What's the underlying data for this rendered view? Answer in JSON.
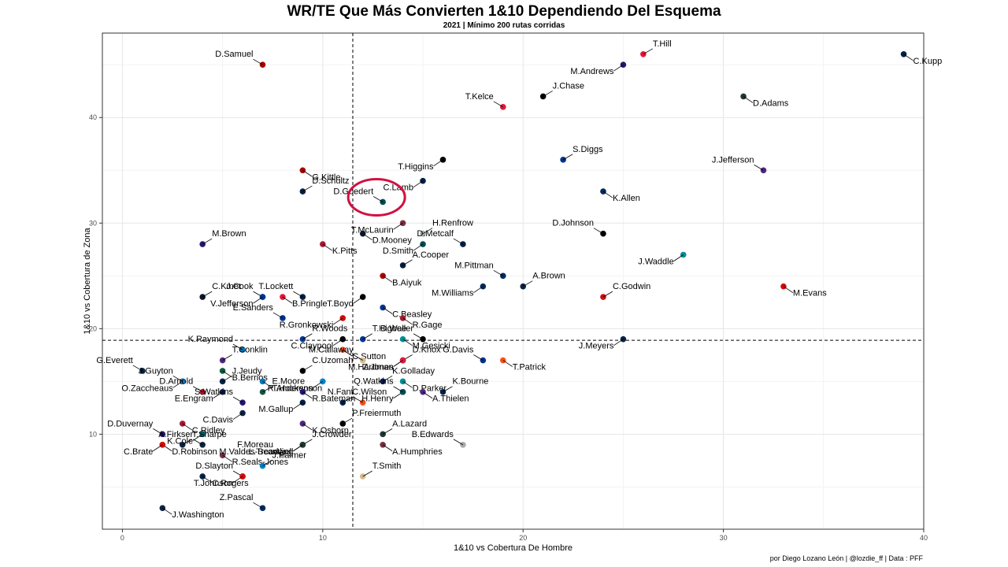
{
  "chart_data": {
    "type": "scatter",
    "title": "WR/TE Que Más Convierten 1&10 Dependiendo Del Esquema",
    "subtitle": "2021 | Mínimo 200 rutas corridas",
    "xlabel": "1&10 vs Cobertura De Hombre",
    "ylabel": "1&10 vs Cobertura de Zona",
    "caption": "por Diego Lozano León | @lozdie_ff | Data : PFF",
    "xlim": [
      -1,
      40
    ],
    "ylim": [
      1,
      48
    ],
    "xticks": [
      0,
      10,
      20,
      30,
      40
    ],
    "yticks": [
      10,
      20,
      30,
      40
    ],
    "grid": true,
    "vline": 11.5,
    "hline": 18.9,
    "highlight": "D.Goedert",
    "points": [
      {
        "name": "T.Hill",
        "x": 26,
        "y": 46,
        "color": "#e31837"
      },
      {
        "name": "C.Kupp",
        "x": 39,
        "y": 46,
        "color": "#002244"
      },
      {
        "name": "D.Samuel",
        "x": 7,
        "y": 45,
        "color": "#aa0000"
      },
      {
        "name": "M.Andrews",
        "x": 25,
        "y": 45,
        "color": "#241773"
      },
      {
        "name": "J.Chase",
        "x": 21,
        "y": 42,
        "color": "#000000"
      },
      {
        "name": "D.Adams",
        "x": 31,
        "y": 42,
        "color": "#203731"
      },
      {
        "name": "T.Kelce",
        "x": 19,
        "y": 41,
        "color": "#e31837"
      },
      {
        "name": "T.Higgins",
        "x": 16,
        "y": 36,
        "color": "#000000"
      },
      {
        "name": "S.Diggs",
        "x": 22,
        "y": 36,
        "color": "#00338d"
      },
      {
        "name": "G.Kittle",
        "x": 9,
        "y": 35,
        "color": "#aa0000"
      },
      {
        "name": "J.Jefferson",
        "x": 32,
        "y": 35,
        "color": "#4f2683"
      },
      {
        "name": "C.Lamb",
        "x": 15,
        "y": 34,
        "color": "#041e42"
      },
      {
        "name": "D.Schultz",
        "x": 9,
        "y": 33,
        "color": "#041e42"
      },
      {
        "name": "K.Allen",
        "x": 24,
        "y": 33,
        "color": "#002a5e"
      },
      {
        "name": "D.Goedert",
        "x": 13,
        "y": 32,
        "color": "#004c54"
      },
      {
        "name": "T.McLaurin",
        "x": 14,
        "y": 30,
        "color": "#773141"
      },
      {
        "name": "H.Renfrow",
        "x": 15,
        "y": 29,
        "color": "#a5acaf"
      },
      {
        "name": "D.Mooney",
        "x": 12,
        "y": 29,
        "color": "#0b162a"
      },
      {
        "name": "D.Johnson",
        "x": 24,
        "y": 29,
        "color": "#000000"
      },
      {
        "name": "D.Smith",
        "x": 15,
        "y": 28,
        "color": "#004c54"
      },
      {
        "name": "M.Brown",
        "x": 4,
        "y": 28,
        "color": "#241773"
      },
      {
        "name": "K.Pitts",
        "x": 10,
        "y": 28,
        "color": "#a71930"
      },
      {
        "name": "D.Metcalf",
        "x": 17,
        "y": 28,
        "color": "#002244"
      },
      {
        "name": "J.Waddle",
        "x": 28,
        "y": 27,
        "color": "#008e97"
      },
      {
        "name": "A.Cooper",
        "x": 14,
        "y": 26,
        "color": "#041e42"
      },
      {
        "name": "B.Aiyuk",
        "x": 13,
        "y": 25,
        "color": "#aa0000"
      },
      {
        "name": "M.Pittman",
        "x": 19,
        "y": 25,
        "color": "#002c5f"
      },
      {
        "name": "M.Williams",
        "x": 18,
        "y": 24,
        "color": "#002a5e"
      },
      {
        "name": "A.Brown",
        "x": 20,
        "y": 24,
        "color": "#0c2340"
      },
      {
        "name": "M.Evans",
        "x": 33,
        "y": 24,
        "color": "#d50a0a"
      },
      {
        "name": "J.Cook",
        "x": 7,
        "y": 23,
        "color": "#002244"
      },
      {
        "name": "V.Jefferson",
        "x": 7,
        "y": 23,
        "color": "#003594"
      },
      {
        "name": "C.Kmet",
        "x": 4,
        "y": 23,
        "color": "#0b162a"
      },
      {
        "name": "B.Pringle",
        "x": 8,
        "y": 23,
        "color": "#e31837"
      },
      {
        "name": "T.Lockett",
        "x": 9,
        "y": 23,
        "color": "#002244"
      },
      {
        "name": "T.Boyd",
        "x": 12,
        "y": 23,
        "color": "#000000"
      },
      {
        "name": "C.Godwin",
        "x": 24,
        "y": 23,
        "color": "#d50a0a"
      },
      {
        "name": "C.Beasley",
        "x": 13,
        "y": 22,
        "color": "#003594"
      },
      {
        "name": "E.Sanders",
        "x": 8,
        "y": 21,
        "color": "#00338d"
      },
      {
        "name": "R.Gronkowski",
        "x": 11,
        "y": 21,
        "color": "#d50a0a"
      },
      {
        "name": "T.Higbee",
        "x": 12,
        "y": 19,
        "color": "#003594"
      },
      {
        "name": "R.Gage",
        "x": 14,
        "y": 21,
        "color": "#a71930"
      },
      {
        "name": "K.Raymond",
        "x": 6,
        "y": 18,
        "color": "#0076b6"
      },
      {
        "name": "C.Claypool",
        "x": 11,
        "y": 19,
        "color": "#000000"
      },
      {
        "name": "R.Woods",
        "x": 9,
        "y": 19,
        "color": "#003594"
      },
      {
        "name": "M.Gesicki",
        "x": 14,
        "y": 19,
        "color": "#008e97"
      },
      {
        "name": "D.Waller",
        "x": 15,
        "y": 19,
        "color": "#000000"
      },
      {
        "name": "J.Meyers",
        "x": 25,
        "y": 19,
        "color": "#002244"
      },
      {
        "name": "T.Conklin",
        "x": 5,
        "y": 17,
        "color": "#4f2683"
      },
      {
        "name": "C.Sutton",
        "x": 11,
        "y": 18,
        "color": "#fb4f14"
      },
      {
        "name": "M.Callaway",
        "x": 12,
        "y": 17,
        "color": "#d3bc8d"
      },
      {
        "name": "Z.Jones",
        "x": 14,
        "y": 17,
        "color": "#241773"
      },
      {
        "name": "D.Knox",
        "x": 14,
        "y": 17,
        "color": "#00338d"
      },
      {
        "name": "T.Patrick",
        "x": 19,
        "y": 17,
        "color": "#fb4f14"
      },
      {
        "name": "G.Davis",
        "x": 18,
        "y": 17,
        "color": "#00338d"
      },
      {
        "name": "M.Hardman",
        "x": 14,
        "y": 17,
        "color": "#e31837"
      },
      {
        "name": "C.Uzomah",
        "x": 9,
        "y": 16,
        "color": "#000000"
      },
      {
        "name": "B.Berrios",
        "x": 5,
        "y": 16,
        "color": "#125740"
      },
      {
        "name": "G.Everett",
        "x": 1,
        "y": 16,
        "color": "#002244"
      },
      {
        "name": "O.Zaccheaus",
        "x": 3,
        "y": 15,
        "color": "#a71930"
      },
      {
        "name": "J.Jeudy",
        "x": 5,
        "y": 15,
        "color": "#002244"
      },
      {
        "name": "T.Hockenson",
        "x": 7,
        "y": 15,
        "color": "#0076b6"
      },
      {
        "name": "J.Guyton",
        "x": 3,
        "y": 15,
        "color": "#0080c6"
      },
      {
        "name": "R.Anderson",
        "x": 10,
        "y": 15,
        "color": "#0085ca"
      },
      {
        "name": "K.Golladay",
        "x": 13,
        "y": 15,
        "color": "#0b2265"
      },
      {
        "name": "D.Parker",
        "x": 14,
        "y": 15,
        "color": "#008e97"
      },
      {
        "name": "D.Arnold",
        "x": 4,
        "y": 14,
        "color": "#a71930"
      },
      {
        "name": "E.Engram",
        "x": 5,
        "y": 14,
        "color": "#0b2265"
      },
      {
        "name": "E.Moore",
        "x": 7,
        "y": 14,
        "color": "#125740"
      },
      {
        "name": "R.Bateman",
        "x": 9,
        "y": 14,
        "color": "#241773"
      },
      {
        "name": "N.Fant",
        "x": 12,
        "y": 13,
        "color": "#fb4f14"
      },
      {
        "name": "H.Henry",
        "x": 14,
        "y": 14,
        "color": "#002244"
      },
      {
        "name": "K.Bourne",
        "x": 16,
        "y": 14,
        "color": "#002244"
      },
      {
        "name": "A.Thielen",
        "x": 15,
        "y": 14,
        "color": "#4f2683"
      },
      {
        "name": "Q.Watkins",
        "x": 14,
        "y": 14,
        "color": "#004c54"
      },
      {
        "name": "M.Gallup",
        "x": 9,
        "y": 13,
        "color": "#041e42"
      },
      {
        "name": "C.Wilson",
        "x": 11,
        "y": 13,
        "color": "#041e42"
      },
      {
        "name": "C.Ridley",
        "x": 3,
        "y": 11,
        "color": "#a71930"
      },
      {
        "name": "S.Watkins",
        "x": 6,
        "y": 13,
        "color": "#241773"
      },
      {
        "name": "C.Davis",
        "x": 6,
        "y": 12,
        "color": "#0c2340"
      },
      {
        "name": "P.Freiermuth",
        "x": 11,
        "y": 11,
        "color": "#000000"
      },
      {
        "name": "K.Osborn",
        "x": 9,
        "y": 11,
        "color": "#4f2683"
      },
      {
        "name": "D.Duvernay",
        "x": 2,
        "y": 10,
        "color": "#241773"
      },
      {
        "name": "K.Cole",
        "x": 4,
        "y": 10,
        "color": "#006778"
      },
      {
        "name": "A.Lazard",
        "x": 13,
        "y": 10,
        "color": "#203731"
      },
      {
        "name": "D.Robinson",
        "x": 2,
        "y": 9,
        "color": "#e31837"
      },
      {
        "name": "A.Firkser",
        "x": 4,
        "y": 9,
        "color": "#0c2340"
      },
      {
        "name": "L.Treadwell",
        "x": 9,
        "y": 9,
        "color": "#006778"
      },
      {
        "name": "J.Crowder",
        "x": 9,
        "y": 9,
        "color": "#125740"
      },
      {
        "name": "A.Humphries",
        "x": 13,
        "y": 9,
        "color": "#773141"
      },
      {
        "name": "B.Edwards",
        "x": 17,
        "y": 9,
        "color": "#a5acaf"
      },
      {
        "name": "C.Brate",
        "x": 2,
        "y": 9,
        "color": "#d50a0a"
      },
      {
        "name": "T.Sharpe",
        "x": 3,
        "y": 9,
        "color": "#0c2340"
      },
      {
        "name": "R.Seals-Jones",
        "x": 5,
        "y": 8,
        "color": "#773141"
      },
      {
        "name": "F.Moreau",
        "x": 8,
        "y": 8,
        "color": "#a5acaf"
      },
      {
        "name": "M.Valdes-Scantling",
        "x": 9,
        "y": 9,
        "color": "#203731"
      },
      {
        "name": "J.Palmer",
        "x": 7,
        "y": 7,
        "color": "#0080c6"
      },
      {
        "name": "C.Rogers",
        "x": 4,
        "y": 6,
        "color": "#002244"
      },
      {
        "name": "D.Slayton",
        "x": 6,
        "y": 6,
        "color": "#a71930"
      },
      {
        "name": "T.Johnson",
        "x": 6,
        "y": 6,
        "color": "#d50a0a"
      },
      {
        "name": "T.Smith",
        "x": 12,
        "y": 6,
        "color": "#d3bc8d"
      },
      {
        "name": "J.Washington",
        "x": 2,
        "y": 3,
        "color": "#0c2340"
      },
      {
        "name": "Z.Pascal",
        "x": 7,
        "y": 3,
        "color": "#002c5f"
      }
    ]
  }
}
